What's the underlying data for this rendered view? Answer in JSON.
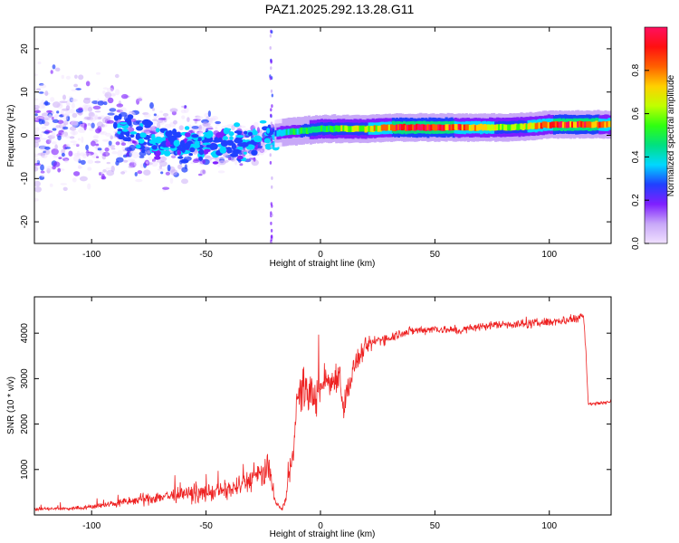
{
  "title": "PAZ1.2025.292.13.28.G11",
  "chart_data": [
    {
      "type": "heatmap",
      "name": "spectrogram",
      "xlabel": "Height of straight line (km)",
      "ylabel": "Frequency (Hz)",
      "xlim": [
        -125,
        127
      ],
      "ylim": [
        -25,
        25
      ],
      "xticks": [
        -100,
        -50,
        0,
        50,
        100
      ],
      "yticks": [
        -20,
        -10,
        0,
        10,
        20
      ],
      "colorbar": {
        "label": "Normalized spectral amplitude",
        "range": [
          0,
          1
        ],
        "ticks": [
          0.0,
          0.2,
          0.4,
          0.6,
          0.8
        ],
        "tick_labels": [
          "0.0",
          "0.2",
          "0.4",
          "0.6",
          "0.8"
        ],
        "colors": [
          "#f0e0ff",
          "#c8a8f8",
          "#7f1fff",
          "#2040ff",
          "#00d8ff",
          "#00e080",
          "#30ff10",
          "#c0ff00",
          "#ffd000",
          "#ff6000",
          "#ff1010",
          "#ff1060"
        ]
      },
      "ridge": {
        "x": [
          -20,
          -15,
          -10,
          -5,
          0,
          10,
          20,
          30,
          40,
          50,
          60,
          70,
          80,
          90,
          100,
          110,
          120,
          127
        ],
        "frequency": [
          0.5,
          0.8,
          1.0,
          1.2,
          1.5,
          1.5,
          1.5,
          1.8,
          1.8,
          1.8,
          1.8,
          1.8,
          1.8,
          2.0,
          2.5,
          2.5,
          2.5,
          2.5
        ],
        "amplitude": [
          0.3,
          0.45,
          0.5,
          0.55,
          0.55,
          0.65,
          0.7,
          0.9,
          1.0,
          0.95,
          0.9,
          0.85,
          0.6,
          0.7,
          0.9,
          1.0,
          0.95,
          0.7
        ]
      },
      "scatter_region": {
        "x_range": [
          -125,
          -20
        ],
        "frequency_center": [
          [
            -125,
            0
          ],
          [
            -90,
            2
          ],
          [
            -70,
            -2
          ],
          [
            -50,
            -2
          ],
          [
            -30,
            -2
          ],
          [
            -20,
            0
          ]
        ],
        "amplitude_level": "low (0.0-0.3)"
      }
    },
    {
      "type": "line",
      "name": "snr",
      "xlabel": "Height of straight line (km)",
      "ylabel": "SNR (10 * v/v)",
      "xlim": [
        -125,
        127
      ],
      "ylim": [
        0,
        4800
      ],
      "xticks": [
        -100,
        -50,
        0,
        50,
        100
      ],
      "yticks": [
        1000,
        2000,
        3000,
        4000
      ],
      "color": "#ee2222",
      "series": [
        {
          "name": "SNR",
          "x": [
            -125,
            -110,
            -100,
            -90,
            -80,
            -70,
            -60,
            -50,
            -40,
            -35,
            -30,
            -25,
            -22,
            -20,
            -17,
            -15,
            -12,
            -10,
            -8,
            -5,
            -2,
            0,
            2,
            5,
            8,
            10,
            15,
            20,
            25,
            30,
            35,
            40,
            50,
            60,
            70,
            80,
            90,
            100,
            110,
            115,
            116,
            117,
            120,
            127
          ],
          "values": [
            130,
            140,
            180,
            250,
            320,
            400,
            450,
            480,
            550,
            650,
            800,
            900,
            1000,
            300,
            120,
            350,
            1500,
            2500,
            2800,
            2700,
            2600,
            2750,
            3000,
            2900,
            3200,
            2400,
            3300,
            3700,
            3850,
            3900,
            4000,
            4050,
            4100,
            4050,
            4150,
            4200,
            4200,
            4250,
            4300,
            4400,
            3600,
            2450,
            2450,
            2500
          ],
          "noise": [
            60,
            60,
            80,
            120,
            180,
            220,
            250,
            280,
            320,
            350,
            400,
            450,
            500,
            150,
            40,
            250,
            500,
            700,
            800,
            700,
            600,
            500,
            550,
            500,
            600,
            500,
            400,
            300,
            200,
            180,
            160,
            150,
            140,
            140,
            140,
            140,
            150,
            150,
            150,
            150,
            100,
            60,
            60,
            60
          ]
        }
      ]
    }
  ]
}
